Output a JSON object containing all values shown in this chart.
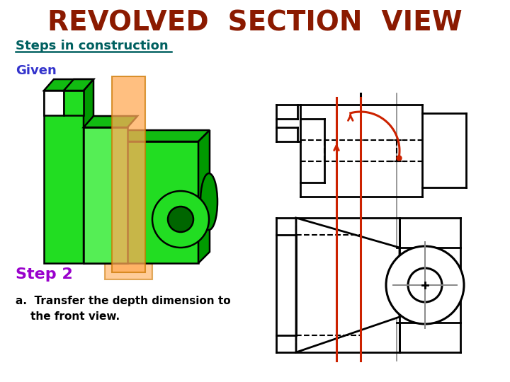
{
  "title": "REVOLVED  SECTION  VIEW",
  "title_color": "#8B1A00",
  "title_fontsize": 28,
  "subtitle": "Steps in construction",
  "subtitle_color": "#006060",
  "given_text": "Given",
  "given_color": "#3333CC",
  "step2_text": "Step 2",
  "step2_color": "#9900CC",
  "step2a_line1": "a.  Transfer the depth dimension to",
  "step2a_line2": "    the front view.",
  "step2a_color": "#000000",
  "bg_color": "#FFFFFF",
  "line_color": "#000000",
  "dashed_color": "#000000",
  "red_line_color": "#CC2200",
  "gray_line_color": "#888888",
  "green_face": "#22DD22",
  "green_top": "#11BB11",
  "green_side": "#009900",
  "green_dark": "#006600",
  "green_inner": "#55EE55",
  "orange_plane": "#FFAA55"
}
